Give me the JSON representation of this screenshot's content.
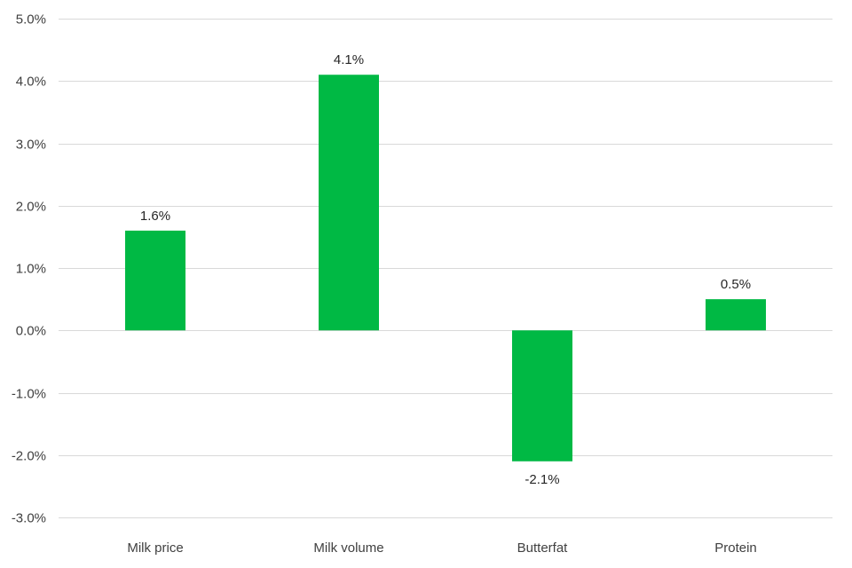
{
  "chart_data": {
    "type": "bar",
    "categories": [
      "Milk price",
      "Milk volume",
      "Butterfat",
      "Protein"
    ],
    "values": [
      1.6,
      4.1,
      -2.1,
      0.5
    ],
    "data_labels": [
      "1.6%",
      "4.1%",
      "-2.1%",
      "0.5%"
    ],
    "y_ticks": [
      5.0,
      4.0,
      3.0,
      2.0,
      1.0,
      0.0,
      -1.0,
      -2.0,
      -3.0
    ],
    "y_tick_labels": [
      "5.0%",
      "4.0%",
      "3.0%",
      "2.0%",
      "1.0%",
      "0.0%",
      "-1.0%",
      "-2.0%",
      "-3.0%"
    ],
    "ylim": [
      -3.0,
      5.0
    ],
    "grid": true,
    "legend": "none",
    "title": "",
    "xlabel": "",
    "ylabel": "",
    "bar_color": "#00b944"
  }
}
